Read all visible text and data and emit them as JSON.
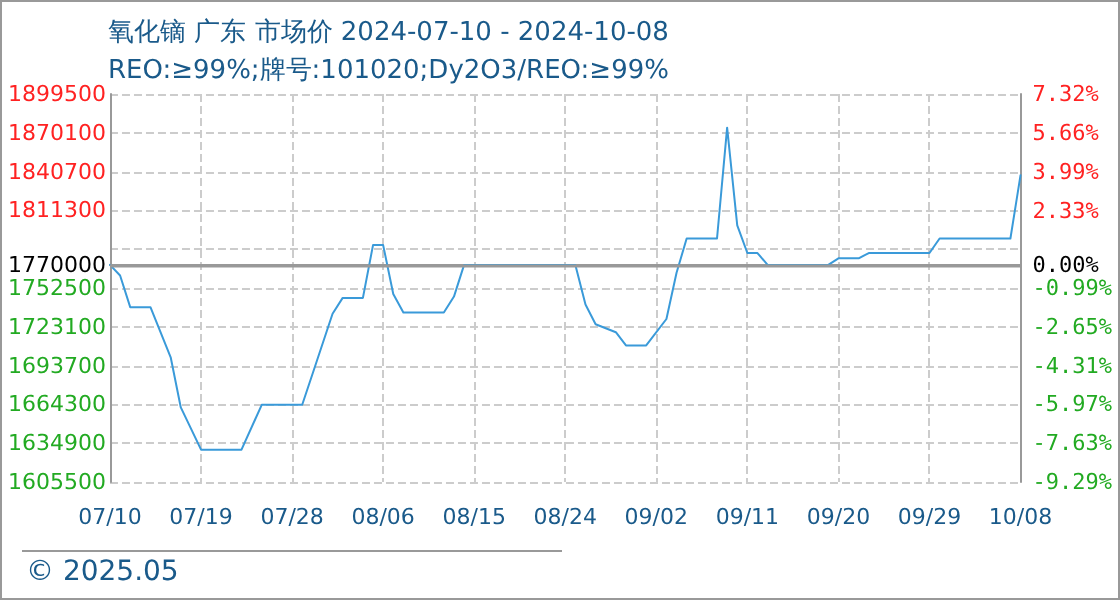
{
  "chart_data": {
    "type": "line",
    "title": "氧化镝 广东 市场价 2024-07-10 - 2024-10-08",
    "subtitle": "REO:≥99%;牌号:101020;Dy2O3/REO:≥99%",
    "x": [
      "2024-07-10",
      "2024-07-11",
      "2024-07-12",
      "2024-07-14",
      "2024-07-16",
      "2024-07-17",
      "2024-07-19",
      "2024-07-23",
      "2024-07-25",
      "2024-07-29",
      "2024-07-30",
      "2024-08-01",
      "2024-08-02",
      "2024-08-04",
      "2024-08-05",
      "2024-08-06",
      "2024-08-07",
      "2024-08-08",
      "2024-08-12",
      "2024-08-13",
      "2024-08-14",
      "2024-08-25",
      "2024-08-26",
      "2024-08-27",
      "2024-08-29",
      "2024-08-30",
      "2024-09-01",
      "2024-09-03",
      "2024-09-04",
      "2024-09-05",
      "2024-09-08",
      "2024-09-09",
      "2024-09-10",
      "2024-09-11",
      "2024-09-12",
      "2024-09-13",
      "2024-09-19",
      "2024-09-20",
      "2024-09-22",
      "2024-09-23",
      "2024-09-29",
      "2024-09-30",
      "2024-10-07",
      "2024-10-08"
    ],
    "series": [
      {
        "color": "#3a9ad9",
        "values": [
          1770000,
          1762000,
          1738000,
          1738000,
          1700000,
          1662000,
          1630000,
          1630000,
          1664000,
          1664000,
          1687000,
          1733000,
          1745000,
          1745000,
          1785000,
          1785000,
          1748000,
          1734000,
          1734000,
          1746000,
          1770000,
          1770000,
          1740000,
          1725000,
          1719000,
          1709000,
          1709000,
          1729000,
          1764000,
          1790000,
          1790000,
          1874000,
          1800000,
          1779000,
          1779000,
          1770000,
          1770000,
          1775000,
          1775000,
          1779000,
          1779000,
          1790000,
          1790000,
          1838000
        ]
      }
    ],
    "xlim": [
      "2024-07-10",
      "2024-10-08"
    ],
    "xticks": [
      {
        "value": "2024-07-10",
        "label": "07/10"
      },
      {
        "value": "2024-07-19",
        "label": "07/19"
      },
      {
        "value": "2024-07-28",
        "label": "07/28"
      },
      {
        "value": "2024-08-06",
        "label": "08/06"
      },
      {
        "value": "2024-08-15",
        "label": "08/15"
      },
      {
        "value": "2024-08-24",
        "label": "08/24"
      },
      {
        "value": "2024-09-02",
        "label": "09/02"
      },
      {
        "value": "2024-09-11",
        "label": "09/11"
      },
      {
        "value": "2024-09-20",
        "label": "09/20"
      },
      {
        "value": "2024-09-29",
        "label": "09/29"
      },
      {
        "value": "2024-10-08",
        "label": "10/08"
      }
    ],
    "ylim": [
      1605500,
      1899500
    ],
    "yticks": [
      1605500,
      1634900,
      1664300,
      1693700,
      1723100,
      1752500,
      1770000,
      {
        "value": 1781900,
        "label": null
      },
      1811300,
      1840700,
      1870100,
      1899500
    ],
    "y2lim": [
      -9.29,
      7.32
    ],
    "y2ticks": [
      {
        "value": -9.29,
        "label": "-9.29%"
      },
      {
        "value": -7.63,
        "label": "-7.63%"
      },
      {
        "value": -5.97,
        "label": "-5.97%"
      },
      {
        "value": -4.31,
        "label": "-4.31%"
      },
      {
        "value": -2.65,
        "label": "-2.65%"
      },
      {
        "value": -0.99,
        "label": "-0.99%"
      },
      {
        "value": 0,
        "label": "0.00%"
      },
      {
        "value": 2.33,
        "label": "2.33%"
      },
      {
        "value": 3.99,
        "label": "3.99%"
      },
      {
        "value": 5.66,
        "label": "5.66%"
      },
      {
        "value": 7.32,
        "label": "7.32%"
      }
    ],
    "ref_lines": [
      {
        "axis": "y",
        "value": 1770000,
        "color": "#999999"
      }
    ],
    "grid": true,
    "marker": "none",
    "line_style": "solid",
    "annotations": [
      "© 2025.05"
    ]
  }
}
